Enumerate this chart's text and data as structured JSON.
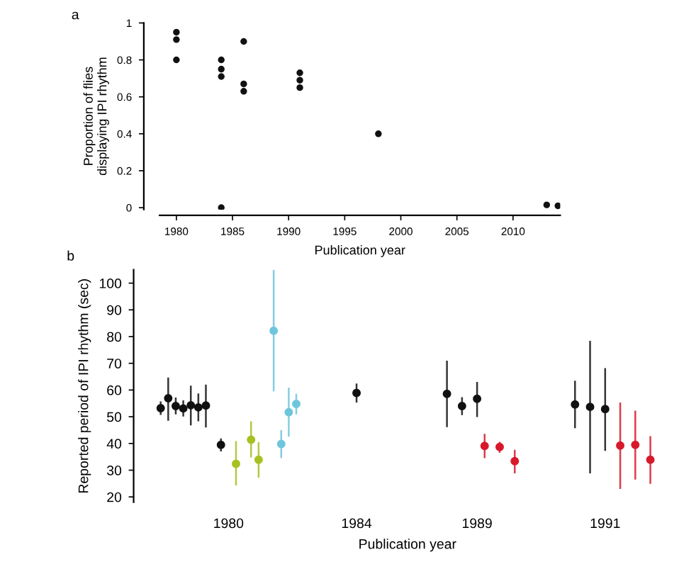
{
  "chart_data": [
    {
      "type": "scatter",
      "xlabel": "Publication year",
      "ylabel": "Proportion of flies\ndisplaying IPI rhythm",
      "annotations": [
        "a"
      ],
      "x": [
        1980,
        1980,
        1980,
        1984,
        1984,
        1984,
        1984,
        1986,
        1986,
        1986,
        1991,
        1991,
        1991,
        1998,
        2013,
        2014
      ],
      "values": [
        0.95,
        0.91,
        0.8,
        0.8,
        0.75,
        0.71,
        0.0,
        0.9,
        0.67,
        0.63,
        0.73,
        0.69,
        0.65,
        0.4,
        0.015,
        0.01
      ],
      "color": "#111111",
      "marker": "circle",
      "xlim": [
        1978.5,
        2014.2
      ],
      "ylim": [
        -0.01,
        1.0
      ],
      "xticks": [
        1980,
        1985,
        1990,
        1995,
        2000,
        2005,
        2010
      ],
      "yticks": [
        0,
        0.2,
        0.4,
        0.6,
        0.8,
        1
      ],
      "grid": false,
      "legend": false
    },
    {
      "type": "scatter",
      "xlabel": "Publication year",
      "ylabel": "Reported period of IPI rhythm (sec)",
      "annotations": [
        "b"
      ],
      "categories": [
        null,
        null,
        null,
        null,
        null,
        null,
        null,
        null,
        null,
        "1980",
        null,
        null,
        null,
        null,
        null,
        null,
        null,
        null,
        null,
        null,
        null,
        null,
        null,
        null,
        null,
        null,
        "1984",
        null,
        null,
        null,
        null,
        null,
        null,
        null,
        null,
        null,
        null,
        null,
        null,
        null,
        null,
        null,
        "1989",
        null,
        null,
        null,
        null,
        null,
        null,
        null,
        null,
        null,
        null,
        null,
        null,
        null,
        null,
        null,
        null,
        "1991",
        null,
        null,
        null,
        null,
        null,
        null
      ],
      "values": [
        53.2,
        56.9,
        54.0,
        53.1,
        54.3,
        53.5,
        54.2,
        null,
        39.5,
        null,
        32.4,
        null,
        41.4,
        33.9,
        null,
        82.2,
        39.8,
        51.7,
        54.8,
        null,
        null,
        null,
        null,
        null,
        null,
        null,
        58.9,
        null,
        null,
        null,
        null,
        null,
        null,
        null,
        null,
        null,
        null,
        null,
        58.6,
        null,
        54.0,
        null,
        56.7,
        39.1,
        null,
        38.7,
        null,
        33.4,
        null,
        null,
        null,
        null,
        null,
        null,
        null,
        54.6,
        null,
        53.7,
        null,
        52.9,
        null,
        39.2,
        null,
        39.5,
        null,
        33.9
      ],
      "errors": [
        [
          50.7,
          55.7
        ],
        [
          48.5,
          64.7
        ],
        [
          50.9,
          57.2
        ],
        [
          50.1,
          56.1
        ],
        [
          46.8,
          61.6
        ],
        [
          48.3,
          58.7
        ],
        [
          46.0,
          62.0
        ],
        null,
        [
          37.0,
          41.9
        ],
        null,
        [
          24.3,
          40.9
        ],
        null,
        [
          34.8,
          48.3
        ],
        [
          27.2,
          40.5
        ],
        null,
        [
          59.5,
          105.0
        ],
        [
          34.5,
          45.0
        ],
        [
          42.5,
          60.9
        ],
        [
          50.9,
          58.6
        ],
        null,
        null,
        null,
        null,
        null,
        null,
        null,
        [
          55.3,
          62.4
        ],
        null,
        null,
        null,
        null,
        null,
        null,
        null,
        null,
        null,
        null,
        null,
        [
          46.1,
          71.0
        ],
        null,
        [
          50.6,
          57.3
        ],
        null,
        [
          49.9,
          63.0
        ],
        [
          34.5,
          43.6
        ],
        null,
        [
          36.5,
          40.6
        ],
        null,
        [
          28.8,
          37.6
        ],
        null,
        null,
        null,
        null,
        null,
        null,
        null,
        [
          45.7,
          63.5
        ],
        null,
        [
          28.8,
          78.4
        ],
        null,
        [
          37.2,
          68.2
        ],
        null,
        [
          23.0,
          55.3
        ],
        null,
        [
          26.5,
          52.3
        ],
        null,
        [
          24.9,
          42.7
        ]
      ],
      "colors": [
        "#111111",
        "#111111",
        "#111111",
        "#111111",
        "#111111",
        "#111111",
        "#111111",
        null,
        "#111111",
        null,
        "#a8c022",
        null,
        "#a8c022",
        "#a8c022",
        null,
        "#6ec6dc",
        "#6ec6dc",
        "#6ec6dc",
        "#6ec6dc",
        null,
        null,
        null,
        null,
        null,
        null,
        null,
        "#111111",
        null,
        null,
        null,
        null,
        null,
        null,
        null,
        null,
        null,
        null,
        null,
        "#111111",
        null,
        "#111111",
        null,
        "#111111",
        "#d7192b",
        null,
        "#d7192b",
        null,
        "#d7192b",
        null,
        null,
        null,
        null,
        null,
        null,
        null,
        "#111111",
        null,
        "#111111",
        null,
        "#111111",
        null,
        "#d7192b",
        null,
        "#d7192b",
        null,
        "#d7192b"
      ],
      "marker": "circle",
      "ylim": [
        18,
        105
      ],
      "yticks": [
        20,
        30,
        40,
        50,
        60,
        70,
        80,
        90,
        100
      ],
      "grid": false,
      "legend": false
    }
  ]
}
